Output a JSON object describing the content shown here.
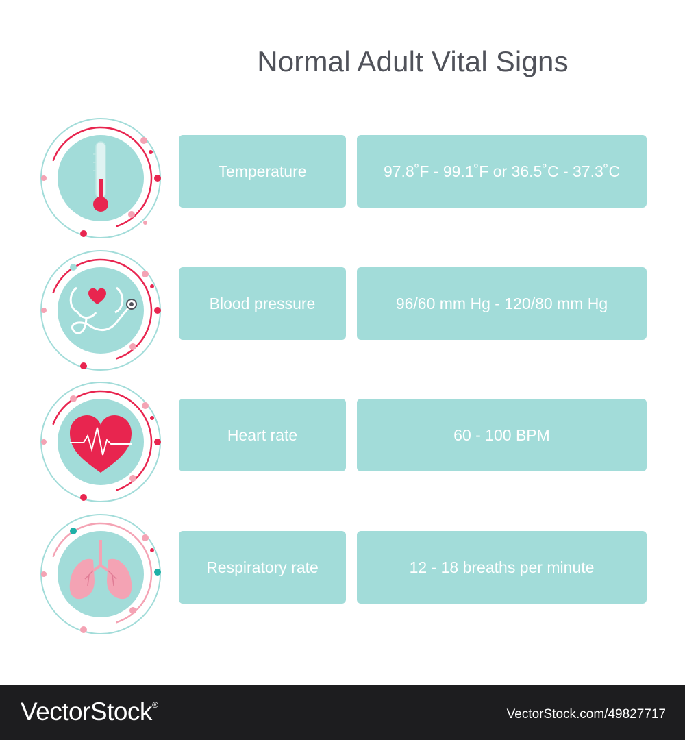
{
  "title": "Normal Adult Vital Signs",
  "rows": [
    {
      "label": "Temperature",
      "value": "97.8˚F - 99.1˚F or 36.5˚C - 37.3˚C",
      "icon": "thermometer-icon"
    },
    {
      "label": "Blood pressure",
      "value": "96/60 mm Hg - 120/80 mm Hg",
      "icon": "stethoscope-heart-icon"
    },
    {
      "label": "Heart rate",
      "value": "60 - 100 BPM",
      "icon": "heart-pulse-icon"
    },
    {
      "label": "Respiratory rate",
      "value": "12 - 18 breaths per minute",
      "icon": "lungs-icon"
    }
  ],
  "colors": {
    "box": "#a2dcd9",
    "accent_red": "#e8254f",
    "accent_pink": "#f4a3b4",
    "accent_teal": "#1fb0a7",
    "circle_fill": "#a2dcd9"
  },
  "footer": {
    "brand": "VectorStock",
    "registered_mark": "®",
    "stock_id": "VectorStock.com/49827717"
  }
}
